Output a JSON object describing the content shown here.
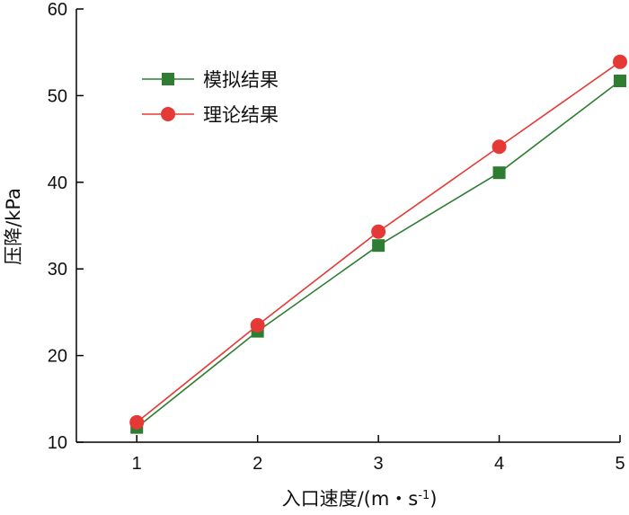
{
  "chart_data": {
    "type": "line",
    "x": [
      1,
      2,
      3,
      4,
      5
    ],
    "xlabel": "入口速度/(m・s",
    "xlabel_exponent": "-1",
    "xlabel_close": ")",
    "ylabel": "压降/kPa",
    "xlim": [
      0.5,
      5
    ],
    "ylim": [
      10,
      60
    ],
    "xticks": [
      "1",
      "2",
      "3",
      "4",
      "5"
    ],
    "yticks": [
      "10",
      "20",
      "30",
      "40",
      "50",
      "60"
    ],
    "grid": false,
    "legend_position": "top-left",
    "series": [
      {
        "name": "模拟结果",
        "marker": "square",
        "color": "#2e7d32",
        "values": [
          11.7,
          22.8,
          32.7,
          41.1,
          51.7
        ]
      },
      {
        "name": "理论结果",
        "marker": "circle",
        "color": "#e53935",
        "values": [
          12.3,
          23.5,
          34.3,
          44.1,
          53.9
        ]
      }
    ]
  }
}
